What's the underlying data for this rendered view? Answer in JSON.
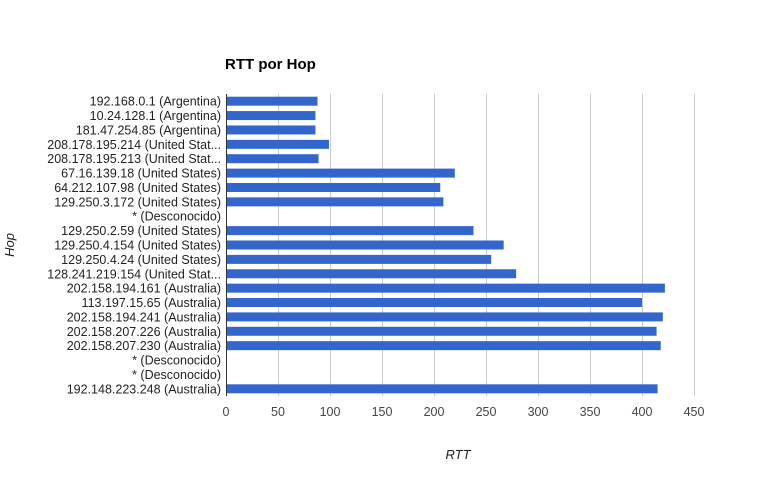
{
  "chart_data": {
    "type": "bar",
    "orientation": "horizontal",
    "title": "RTT por Hop",
    "xlabel": "RTT",
    "ylabel": "Hop",
    "xlim": [
      0,
      450
    ],
    "xticks": [
      "0",
      "50",
      "100",
      "150",
      "200",
      "250",
      "300",
      "350",
      "400",
      "450"
    ],
    "xtick_values": [
      0,
      50,
      100,
      150,
      200,
      250,
      300,
      350,
      400,
      450
    ],
    "grid": true,
    "legend": "none",
    "bar_color": "#3366cc",
    "categories": [
      "192.168.0.1 (Argentina)",
      "10.24.128.1 (Argentina)",
      "181.47.254.85 (Argentina)",
      "208.178.195.214 (United Stat...",
      "208.178.195.213 (United Stat...",
      "67.16.139.18 (United States)",
      "64.212.107.98 (United States)",
      "129.250.3.172 (United States)",
      "* (Desconocido)",
      "129.250.2.59 (United States)",
      "129.250.4.154 (United States)",
      "129.250.4.24 (United States)",
      "128.241.219.154 (United Stat...",
      "202.158.194.161 (Australia)",
      "113.197.15.65 (Australia)",
      "202.158.194.241 (Australia)",
      "202.158.207.226 (Australia)",
      "202.158.207.230 (Australia)",
      "* (Desconocido)",
      "* (Desconocido)",
      "192.148.223.248 (Australia)"
    ],
    "values": [
      88,
      86,
      86,
      99,
      89,
      220,
      206,
      209,
      null,
      238,
      267,
      255,
      279,
      422,
      400,
      420,
      414,
      418,
      null,
      null,
      415
    ]
  }
}
